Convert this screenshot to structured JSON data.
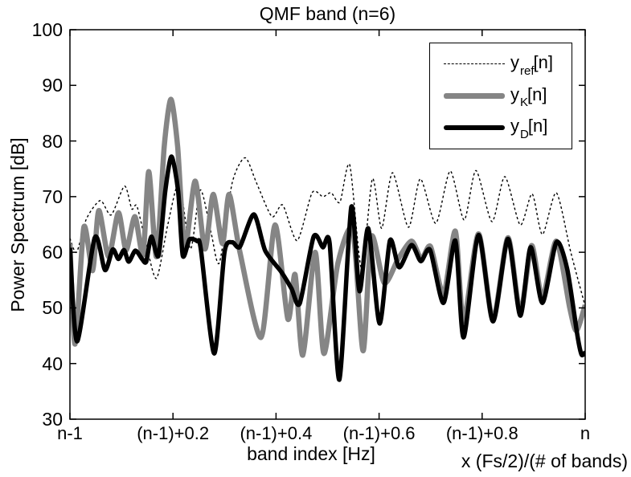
{
  "chart_data": {
    "type": "line",
    "title": "QMF band (n=6)",
    "xlabel": "band index [Hz]",
    "xlabel_secondary": "x (Fs/2)/(# of bands)",
    "ylabel": "Power Spectrum [dB]",
    "xlim": [
      0,
      1
    ],
    "ylim": [
      30,
      100
    ],
    "grid": false,
    "legend_position": "top-right",
    "frame_color": "#000000",
    "background_color": "#ffffff",
    "x_ticks": [
      {
        "pos": 0.0,
        "label": "n-1"
      },
      {
        "pos": 0.2,
        "label": "(n-1)+0.2"
      },
      {
        "pos": 0.4,
        "label": "(n-1)+0.4"
      },
      {
        "pos": 0.6,
        "label": "(n-1)+0.6"
      },
      {
        "pos": 0.8,
        "label": "(n-1)+0.8"
      },
      {
        "pos": 1.0,
        "label": "n"
      }
    ],
    "y_ticks": [
      30,
      40,
      50,
      60,
      70,
      80,
      90,
      100
    ],
    "series": [
      {
        "name": "y_ref[n]",
        "label_base": "y",
        "label_sub": "ref",
        "label_rest": "[n]",
        "style": "dashed",
        "color": "#000000",
        "width": 1.4,
        "points": [
          [
            0.0,
            62.5
          ],
          [
            0.013,
            60.0
          ],
          [
            0.032,
            66.0
          ],
          [
            0.059,
            69.3
          ],
          [
            0.08,
            66.7
          ],
          [
            0.106,
            71.9
          ],
          [
            0.12,
            67.8
          ],
          [
            0.13,
            68.3
          ],
          [
            0.148,
            61.5
          ],
          [
            0.168,
            55.3
          ],
          [
            0.19,
            65.0
          ],
          [
            0.212,
            72.4
          ],
          [
            0.234,
            60.6
          ],
          [
            0.253,
            71.2
          ],
          [
            0.274,
            63.5
          ],
          [
            0.29,
            58.1
          ],
          [
            0.315,
            72.5
          ],
          [
            0.34,
            77.0
          ],
          [
            0.362,
            72.5
          ],
          [
            0.392,
            66.4
          ],
          [
            0.413,
            68.5
          ],
          [
            0.441,
            62.1
          ],
          [
            0.47,
            70.7
          ],
          [
            0.491,
            70.0
          ],
          [
            0.507,
            70.7
          ],
          [
            0.524,
            69.0
          ],
          [
            0.543,
            75.7
          ],
          [
            0.566,
            57.0
          ],
          [
            0.587,
            73.2
          ],
          [
            0.605,
            64.3
          ],
          [
            0.626,
            74.3
          ],
          [
            0.657,
            64.5
          ],
          [
            0.68,
            73.2
          ],
          [
            0.71,
            65.2
          ],
          [
            0.738,
            74.6
          ],
          [
            0.765,
            65.8
          ],
          [
            0.788,
            74.7
          ],
          [
            0.819,
            65.5
          ],
          [
            0.844,
            73.6
          ],
          [
            0.874,
            64.9
          ],
          [
            0.897,
            70.5
          ],
          [
            0.917,
            63.2
          ],
          [
            0.944,
            70.7
          ],
          [
            0.972,
            60.0
          ],
          [
            1.0,
            50.3
          ]
        ]
      },
      {
        "name": "y_K[n]",
        "label_base": "y",
        "label_sub": "K",
        "label_rest": "[n]",
        "style": "solid",
        "color": "#858585",
        "width": 6.5,
        "points": [
          [
            0.0,
            61.5
          ],
          [
            0.01,
            43.5
          ],
          [
            0.027,
            64.5
          ],
          [
            0.044,
            56.7
          ],
          [
            0.056,
            67.5
          ],
          [
            0.075,
            59.2
          ],
          [
            0.094,
            67.1
          ],
          [
            0.109,
            60.4
          ],
          [
            0.126,
            66.4
          ],
          [
            0.142,
            59.6
          ],
          [
            0.153,
            74.5
          ],
          [
            0.168,
            59.2
          ],
          [
            0.183,
            79.0
          ],
          [
            0.196,
            87.5
          ],
          [
            0.209,
            79.0
          ],
          [
            0.223,
            60.8
          ],
          [
            0.243,
            72.8
          ],
          [
            0.262,
            60.6
          ],
          [
            0.278,
            70.4
          ],
          [
            0.296,
            61.6
          ],
          [
            0.309,
            70.4
          ],
          [
            0.33,
            60.0
          ],
          [
            0.371,
            44.7
          ],
          [
            0.398,
            64.9
          ],
          [
            0.423,
            48.0
          ],
          [
            0.437,
            56.0
          ],
          [
            0.452,
            41.5
          ],
          [
            0.476,
            60.0
          ],
          [
            0.493,
            41.8
          ],
          [
            0.52,
            58.0
          ],
          [
            0.549,
            64.0
          ],
          [
            0.569,
            42.3
          ],
          [
            0.585,
            62.8
          ],
          [
            0.61,
            54.5
          ],
          [
            0.637,
            58.8
          ],
          [
            0.663,
            62.0
          ],
          [
            0.682,
            58.8
          ],
          [
            0.7,
            61.0
          ],
          [
            0.725,
            52.5
          ],
          [
            0.748,
            63.8
          ],
          [
            0.764,
            47.6
          ],
          [
            0.793,
            63.3
          ],
          [
            0.821,
            47.8
          ],
          [
            0.85,
            62.6
          ],
          [
            0.874,
            49.2
          ],
          [
            0.896,
            61.2
          ],
          [
            0.917,
            51.8
          ],
          [
            0.944,
            62.0
          ],
          [
            0.97,
            50.0
          ],
          [
            0.983,
            45.9
          ],
          [
            1.0,
            50.5
          ]
        ]
      },
      {
        "name": "y_D[n]",
        "label_base": "y",
        "label_sub": "D",
        "label_rest": "[n]",
        "style": "solid",
        "color": "#000000",
        "width": 5.5,
        "points": [
          [
            0.0,
            60.8
          ],
          [
            0.014,
            44.0
          ],
          [
            0.048,
            62.6
          ],
          [
            0.068,
            56.8
          ],
          [
            0.083,
            60.5
          ],
          [
            0.094,
            58.8
          ],
          [
            0.105,
            60.4
          ],
          [
            0.114,
            58.3
          ],
          [
            0.127,
            60.3
          ],
          [
            0.14,
            58.8
          ],
          [
            0.148,
            58.3
          ],
          [
            0.158,
            62.8
          ],
          [
            0.172,
            59.4
          ],
          [
            0.185,
            71.0
          ],
          [
            0.197,
            77.2
          ],
          [
            0.21,
            71.0
          ],
          [
            0.219,
            59.4
          ],
          [
            0.232,
            62.3
          ],
          [
            0.247,
            62.0
          ],
          [
            0.254,
            60.6
          ],
          [
            0.28,
            41.8
          ],
          [
            0.3,
            60.0
          ],
          [
            0.315,
            61.8
          ],
          [
            0.33,
            61.0
          ],
          [
            0.357,
            66.8
          ],
          [
            0.379,
            60.3
          ],
          [
            0.41,
            56.5
          ],
          [
            0.43,
            53.5
          ],
          [
            0.446,
            50.8
          ],
          [
            0.473,
            62.8
          ],
          [
            0.491,
            60.9
          ],
          [
            0.504,
            61.6
          ],
          [
            0.523,
            37.1
          ],
          [
            0.546,
            68.1
          ],
          [
            0.562,
            53.0
          ],
          [
            0.579,
            64.3
          ],
          [
            0.601,
            47.2
          ],
          [
            0.621,
            62.1
          ],
          [
            0.639,
            57.3
          ],
          [
            0.663,
            61.3
          ],
          [
            0.681,
            58.4
          ],
          [
            0.699,
            60.4
          ],
          [
            0.725,
            50.9
          ],
          [
            0.748,
            62.1
          ],
          [
            0.764,
            44.7
          ],
          [
            0.793,
            63.1
          ],
          [
            0.821,
            47.6
          ],
          [
            0.85,
            62.4
          ],
          [
            0.874,
            48.6
          ],
          [
            0.894,
            60.9
          ],
          [
            0.917,
            50.9
          ],
          [
            0.944,
            61.8
          ],
          [
            0.965,
            57.0
          ],
          [
            0.985,
            45.0
          ],
          [
            0.993,
            41.6
          ],
          [
            1.0,
            42.0
          ]
        ]
      }
    ]
  }
}
